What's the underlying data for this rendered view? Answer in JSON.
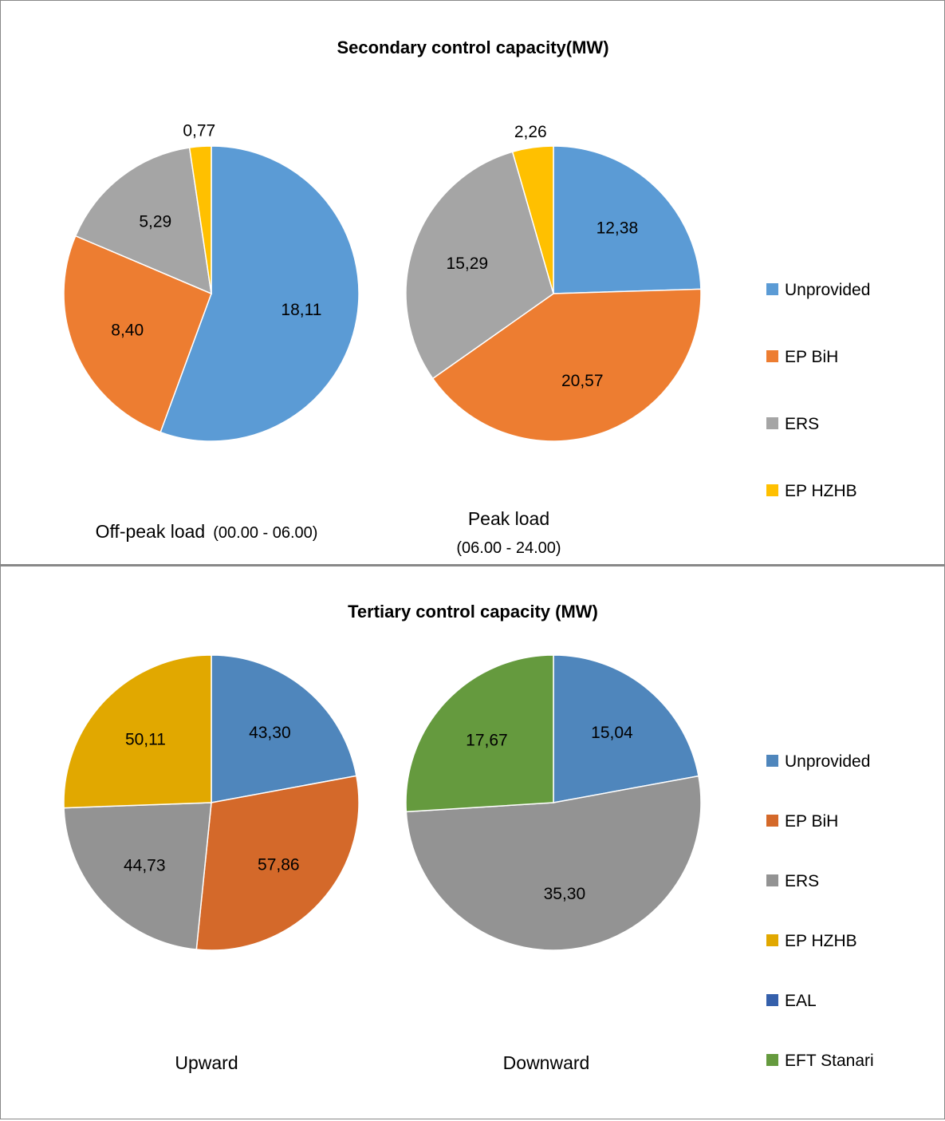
{
  "colors": {
    "secondary": {
      "Unprovided": "#5B9BD5",
      "EP BiH": "#ED7D31",
      "ERS": "#A5A5A5",
      "EP HZHB": "#FFC000"
    },
    "tertiary": {
      "Unprovided": "#4F86BC",
      "EP BiH": "#D4692A",
      "ERS": "#939393",
      "EP HZHB": "#E1A800",
      "EAL": "#3560AB",
      "EFT Stanari": "#659A3E"
    }
  },
  "chart_data": [
    {
      "type": "pie",
      "title": "Secondary control capacity(MW)",
      "legend": [
        "Unprovided",
        "EP BiH",
        "ERS",
        "EP HZHB"
      ],
      "legend_placement": "right",
      "pies": [
        {
          "caption": "Off-peak load",
          "caption_sub": "(00.00 - 06.00)",
          "slices": [
            {
              "name": "Unprovided",
              "value": 18.11,
              "label": "18,11"
            },
            {
              "name": "EP BiH",
              "value": 8.4,
              "label": "8,40"
            },
            {
              "name": "ERS",
              "value": 5.29,
              "label": "5,29"
            },
            {
              "name": "EP HZHB",
              "value": 0.77,
              "label": "0,77"
            }
          ]
        },
        {
          "caption": "Peak load",
          "caption_sub": "(06.00 - 24.00)",
          "slices": [
            {
              "name": "Unprovided",
              "value": 12.38,
              "label": "12,38"
            },
            {
              "name": "EP BiH",
              "value": 20.57,
              "label": "20,57"
            },
            {
              "name": "ERS",
              "value": 15.29,
              "label": "15,29"
            },
            {
              "name": "EP HZHB",
              "value": 2.26,
              "label": "2,26"
            }
          ]
        }
      ]
    },
    {
      "type": "pie",
      "title": "Tertiary control capacity (MW)",
      "legend": [
        "Unprovided",
        "EP BiH",
        "ERS",
        "EP HZHB",
        "EAL",
        "EFT Stanari"
      ],
      "legend_placement": "right",
      "pies": [
        {
          "caption": "Upward",
          "caption_sub": "",
          "slices": [
            {
              "name": "Unprovided",
              "value": 43.3,
              "label": "43,30"
            },
            {
              "name": "EP BiH",
              "value": 57.86,
              "label": "57,86"
            },
            {
              "name": "ERS",
              "value": 44.73,
              "label": "44,73"
            },
            {
              "name": "EP HZHB",
              "value": 50.11,
              "label": "50,11"
            }
          ]
        },
        {
          "caption": "Downward",
          "caption_sub": "",
          "slices": [
            {
              "name": "Unprovided",
              "value": 15.04,
              "label": "15,04"
            },
            {
              "name": "ERS",
              "value": 35.3,
              "label": "35,30"
            },
            {
              "name": "EFT Stanari",
              "value": 17.67,
              "label": "17,67"
            }
          ]
        }
      ]
    }
  ]
}
